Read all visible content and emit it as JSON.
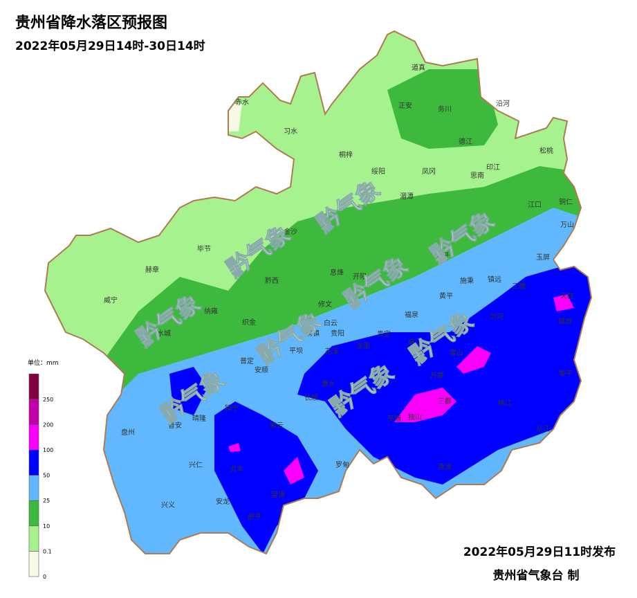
{
  "header": {
    "title": "贵州省降水落区预报图",
    "subtitle": "2022年05月29日14时-30日14时"
  },
  "legend": {
    "unit": "单位：mm",
    "ticks": [
      "0",
      "0.1",
      "10",
      "25",
      "50",
      "100",
      "200",
      "250"
    ],
    "colors": [
      "#f7fbe6",
      "#a6f28e",
      "#3dba3d",
      "#61b8ff",
      "#0000fe",
      "#fa00fa",
      "#c000a8",
      "#800040"
    ]
  },
  "watermark": "黔气象",
  "counties": [
    "道真",
    "正安",
    "务川",
    "沿河",
    "赤水",
    "习水",
    "桐梓",
    "德江",
    "松桃",
    "绥阳",
    "凤冈",
    "印江",
    "思南",
    "湄潭",
    "江口",
    "铜仁",
    "万山",
    "金沙",
    "毕节",
    "赫章",
    "威宁",
    "黔西",
    "息烽",
    "开阳",
    "石阡",
    "玉屏",
    "施秉",
    "镇远",
    "三穗",
    "天柱",
    "黄平",
    "修文",
    "福泉",
    "织金",
    "纳雍",
    "水城",
    "白云",
    "贵阳",
    "清镇",
    "贵定",
    "麻江",
    "剑河",
    "锦屏",
    "平坝",
    "花溪",
    "龙里",
    "雷山",
    "黎平",
    "安顺",
    "普定",
    "丹寨",
    "长顺",
    "惠水",
    "镇宁",
    "三都",
    "晴隆",
    "普安",
    "盘州",
    "榕江",
    "独山",
    "平塘",
    "紫云",
    "从江",
    "兴仁",
    "贞丰",
    "罗甸",
    "荔波",
    "安龙",
    "兴义",
    "望谟",
    "册亨"
  ],
  "footer": {
    "issued": "2022年05月29日11时发布",
    "agency": "贵州省气象台 制"
  }
}
